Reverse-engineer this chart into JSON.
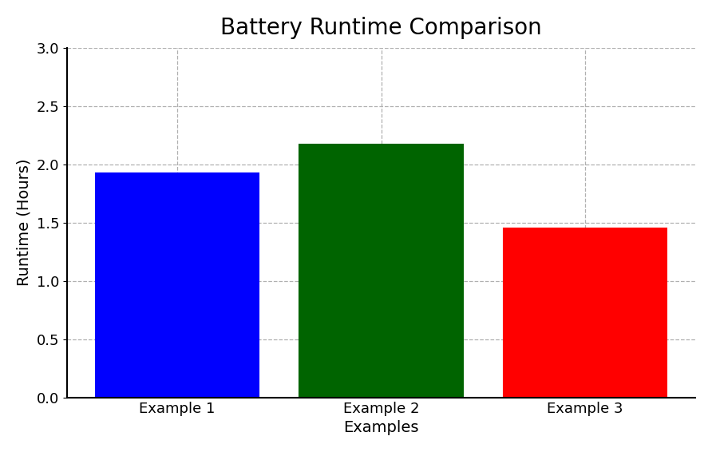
{
  "categories": [
    "Example 1",
    "Example 2",
    "Example 3"
  ],
  "values": [
    1.92,
    2.17,
    1.45
  ],
  "bar_colors": [
    "#0000ff",
    "#006400",
    "#ff0000"
  ],
  "bar_edgecolors": [
    "#0000ff",
    "#006400",
    "#ff0000"
  ],
  "title": "Battery Runtime Comparison",
  "xlabel": "Examples",
  "ylabel": "Runtime (Hours)",
  "ylim": [
    0,
    3.0
  ],
  "yticks": [
    0.0,
    0.5,
    1.0,
    1.5,
    2.0,
    2.5,
    3.0
  ],
  "title_fontsize": 20,
  "label_fontsize": 14,
  "tick_fontsize": 13,
  "background_color": "#ffffff",
  "grid_color": "#b0b0b0",
  "grid_linestyle": "--",
  "bar_width": 0.8
}
